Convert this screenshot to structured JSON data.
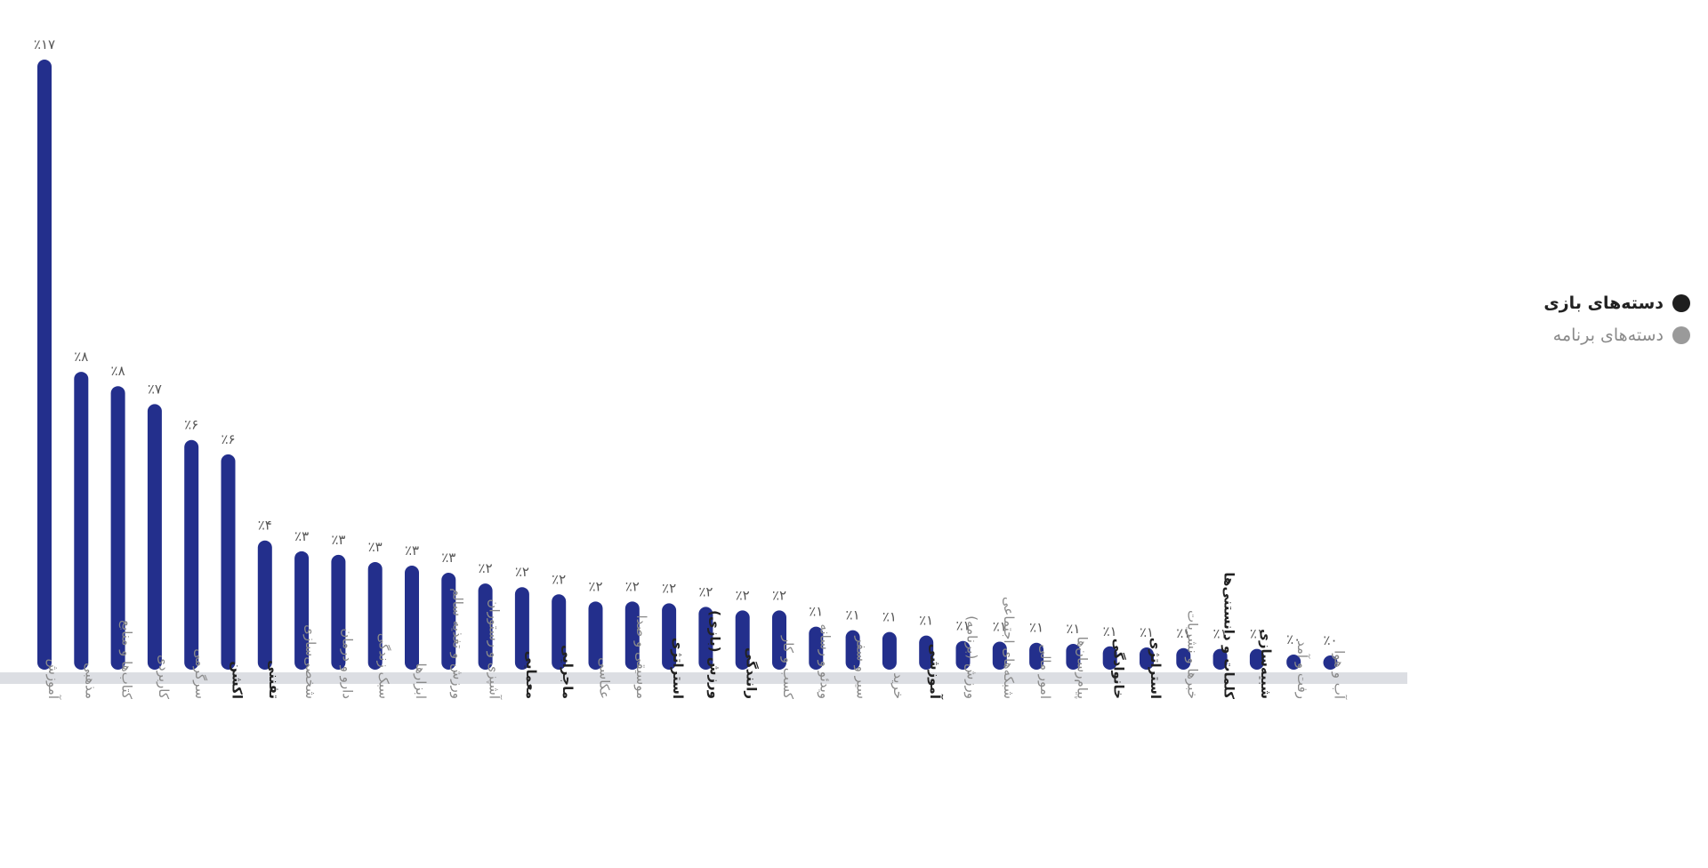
{
  "chart_data": {
    "type": "bar",
    "title": "",
    "xlabel": "",
    "ylabel": "",
    "ylim": [
      0,
      17
    ],
    "bar_color": "#232f8c",
    "baseline_color": "#dcdee3",
    "categories": [
      {
        "label": "آموزش",
        "value": 17,
        "value_label": "٪۱۷",
        "group": "app"
      },
      {
        "label": "مذهبی",
        "value": 8.3,
        "value_label": "٪۸",
        "group": "app"
      },
      {
        "label": "کتاب‌ها و منابع",
        "value": 7.9,
        "value_label": "٪۸",
        "group": "app"
      },
      {
        "label": "کاربردی",
        "value": 7.4,
        "value_label": "٪۷",
        "group": "app"
      },
      {
        "label": "سرگرمی",
        "value": 6.4,
        "value_label": "٪۶",
        "group": "app"
      },
      {
        "label": "اکشن",
        "value": 6.0,
        "value_label": "٪۶",
        "group": "game"
      },
      {
        "label": "تفننی",
        "value": 3.6,
        "value_label": "٪۴",
        "group": "game"
      },
      {
        "label": "شخصی‌سازی",
        "value": 3.3,
        "value_label": "٪۳",
        "group": "app"
      },
      {
        "label": "دارو و درمان",
        "value": 3.2,
        "value_label": "٪۳",
        "group": "app"
      },
      {
        "label": "سبک زندگی",
        "value": 3.0,
        "value_label": "٪۳",
        "group": "app"
      },
      {
        "label": "ابزارها",
        "value": 2.9,
        "value_label": "٪۳",
        "group": "app"
      },
      {
        "label": "ورزش و تغذیه سالم",
        "value": 2.7,
        "value_label": "٪۳",
        "group": "app"
      },
      {
        "label": "آشپزی و رستوران",
        "value": 2.4,
        "value_label": "٪۲",
        "group": "app"
      },
      {
        "label": "معمایی",
        "value": 2.3,
        "value_label": "٪۲",
        "group": "game"
      },
      {
        "label": "ماجرایی",
        "value": 2.1,
        "value_label": "٪۲",
        "group": "game"
      },
      {
        "label": "عکاسی",
        "value": 1.9,
        "value_label": "٪۲",
        "group": "app"
      },
      {
        "label": "موسیقی و صدا",
        "value": 1.9,
        "value_label": "٪۲",
        "group": "app"
      },
      {
        "label": "استراتژی",
        "value": 1.85,
        "value_label": "٪۲",
        "group": "game"
      },
      {
        "label": "ورزش (بازی)",
        "value": 1.75,
        "value_label": "٪۲",
        "group": "game"
      },
      {
        "label": "رانندگی",
        "value": 1.65,
        "value_label": "٪۲",
        "group": "game"
      },
      {
        "label": "کسب و کار",
        "value": 1.65,
        "value_label": "٪۲",
        "group": "app"
      },
      {
        "label": "ویدئو و رسانه",
        "value": 1.2,
        "value_label": "٪۱",
        "group": "app"
      },
      {
        "label": "سیر و سفر",
        "value": 1.1,
        "value_label": "٪۱",
        "group": "app"
      },
      {
        "label": "خرید",
        "value": 1.05,
        "value_label": "٪۱",
        "group": "app"
      },
      {
        "label": "آموزشی",
        "value": 0.95,
        "value_label": "٪۱",
        "group": "game"
      },
      {
        "label": "ورزش (برنامه)",
        "value": 0.8,
        "value_label": "٪۱",
        "group": "app"
      },
      {
        "label": "شبکه‌های اجتماعی",
        "value": 0.78,
        "value_label": "٪۱",
        "group": "app"
      },
      {
        "label": "امور مالی",
        "value": 0.75,
        "value_label": "٪۱",
        "group": "app"
      },
      {
        "label": "پیام‌رسان‌ها",
        "value": 0.72,
        "value_label": "٪۱",
        "group": "app"
      },
      {
        "label": "خانوادگی",
        "value": 0.65,
        "value_label": "٪۱",
        "group": "game"
      },
      {
        "label": "استراتژی",
        "value": 0.62,
        "value_label": "٪۱",
        "group": "game"
      },
      {
        "label": "خبرها و نشریات",
        "value": 0.6,
        "value_label": "٪۱",
        "group": "app"
      },
      {
        "label": "کلمات و دانستنی‌ها",
        "value": 0.58,
        "value_label": "٪۱",
        "group": "game"
      },
      {
        "label": "شبیه‌سازی",
        "value": 0.58,
        "value_label": "٪۱",
        "group": "game"
      },
      {
        "label": "رفت و آمد",
        "value": 0.42,
        "value_label": "٪۰",
        "group": "app"
      },
      {
        "label": "آب و هوا",
        "value": 0.35,
        "value_label": "٪۰",
        "group": "app"
      }
    ],
    "legend": {
      "placement": "right",
      "items": [
        {
          "key": "game",
          "label": "دسته‌های بازی",
          "color": "#1e1e1e",
          "text_color": "#222222"
        },
        {
          "key": "app",
          "label": "دسته‌های برنامه",
          "color": "#9a9a9a",
          "text_color": "#8a8a8a"
        }
      ]
    }
  }
}
